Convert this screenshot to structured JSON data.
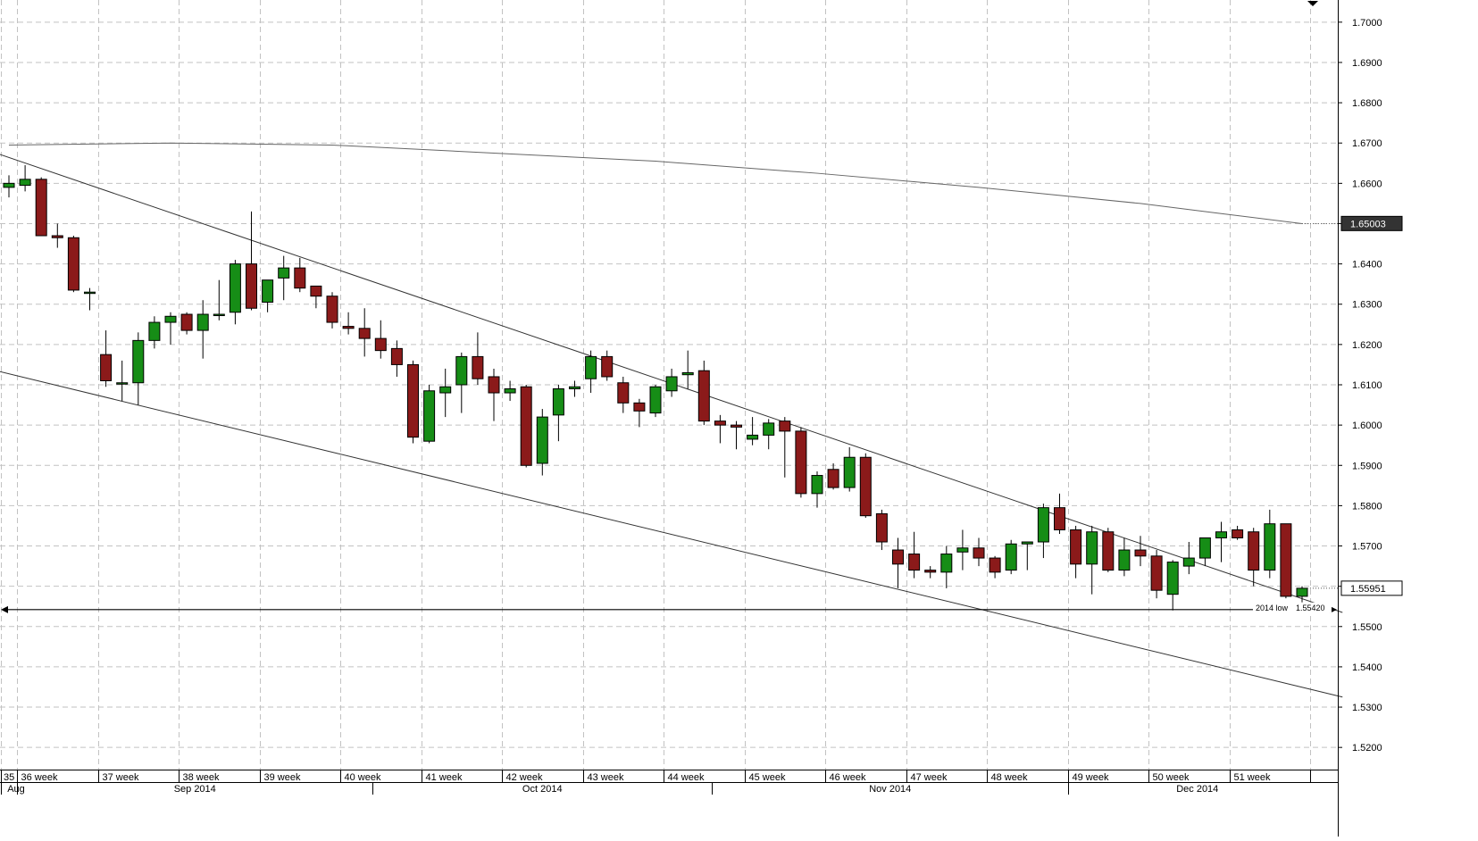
{
  "chart_data": {
    "type": "candlestick",
    "period": "daily",
    "y_axis": {
      "range": [
        1.5145,
        1.7055
      ],
      "ticks": [
        "1.5200",
        "1.5300",
        "1.5400",
        "1.5500",
        "1.5600",
        "1.5700",
        "1.5800",
        "1.5900",
        "1.6000",
        "1.6100",
        "1.6200",
        "1.6300",
        "1.6400",
        "1.6500",
        "1.6600",
        "1.6700",
        "1.6800",
        "1.6900",
        "1.7000"
      ],
      "grid": true
    },
    "x_axis": {
      "week_labels": [
        "35",
        "36 week",
        "37 week",
        "38 week",
        "39 week",
        "40 week",
        "41 week",
        "42 week",
        "43 week",
        "44 week",
        "45 week",
        "46 week",
        "47 week",
        "48 week",
        "49 week",
        "50 week",
        "51 week"
      ],
      "month_labels": [
        "Aug",
        "Sep 2014",
        "Oct 2014",
        "Nov 2014",
        "Dec 2014"
      ]
    },
    "candles": [
      {
        "o": 1.659,
        "h": 1.662,
        "l": 1.6565,
        "c": 1.66
      },
      {
        "o": 1.6595,
        "h": 1.6645,
        "l": 1.658,
        "c": 1.661
      },
      {
        "o": 1.661,
        "h": 1.6615,
        "l": 1.647,
        "c": 1.647
      },
      {
        "o": 1.647,
        "h": 1.65,
        "l": 1.644,
        "c": 1.6465
      },
      {
        "o": 1.6465,
        "h": 1.647,
        "l": 1.633,
        "c": 1.6335
      },
      {
        "o": 1.633,
        "h": 1.634,
        "l": 1.6285,
        "c": 1.633
      },
      {
        "o": 1.6175,
        "h": 1.6235,
        "l": 1.6095,
        "c": 1.611
      },
      {
        "o": 1.6105,
        "h": 1.616,
        "l": 1.606,
        "c": 1.6105
      },
      {
        "o": 1.6105,
        "h": 1.623,
        "l": 1.605,
        "c": 1.621
      },
      {
        "o": 1.621,
        "h": 1.627,
        "l": 1.619,
        "c": 1.6255
      },
      {
        "o": 1.6255,
        "h": 1.628,
        "l": 1.62,
        "c": 1.627
      },
      {
        "o": 1.6275,
        "h": 1.628,
        "l": 1.6225,
        "c": 1.6235
      },
      {
        "o": 1.6235,
        "h": 1.631,
        "l": 1.6165,
        "c": 1.6275
      },
      {
        "o": 1.6275,
        "h": 1.636,
        "l": 1.626,
        "c": 1.6275
      },
      {
        "o": 1.628,
        "h": 1.641,
        "l": 1.625,
        "c": 1.64
      },
      {
        "o": 1.64,
        "h": 1.653,
        "l": 1.6285,
        "c": 1.629
      },
      {
        "o": 1.6305,
        "h": 1.636,
        "l": 1.628,
        "c": 1.636
      },
      {
        "o": 1.6365,
        "h": 1.642,
        "l": 1.631,
        "c": 1.639
      },
      {
        "o": 1.639,
        "h": 1.6415,
        "l": 1.633,
        "c": 1.634
      },
      {
        "o": 1.6345,
        "h": 1.6345,
        "l": 1.629,
        "c": 1.632
      },
      {
        "o": 1.632,
        "h": 1.633,
        "l": 1.624,
        "c": 1.6255
      },
      {
        "o": 1.6245,
        "h": 1.628,
        "l": 1.6225,
        "c": 1.624
      },
      {
        "o": 1.624,
        "h": 1.629,
        "l": 1.617,
        "c": 1.6215
      },
      {
        "o": 1.6215,
        "h": 1.626,
        "l": 1.6165,
        "c": 1.6185
      },
      {
        "o": 1.619,
        "h": 1.621,
        "l": 1.612,
        "c": 1.615
      },
      {
        "o": 1.615,
        "h": 1.616,
        "l": 1.5955,
        "c": 1.597
      },
      {
        "o": 1.596,
        "h": 1.61,
        "l": 1.5955,
        "c": 1.6085
      },
      {
        "o": 1.608,
        "h": 1.614,
        "l": 1.602,
        "c": 1.6095
      },
      {
        "o": 1.61,
        "h": 1.618,
        "l": 1.603,
        "c": 1.617
      },
      {
        "o": 1.617,
        "h": 1.623,
        "l": 1.61,
        "c": 1.6115
      },
      {
        "o": 1.612,
        "h": 1.614,
        "l": 1.601,
        "c": 1.608
      },
      {
        "o": 1.608,
        "h": 1.611,
        "l": 1.606,
        "c": 1.609
      },
      {
        "o": 1.6095,
        "h": 1.61,
        "l": 1.5895,
        "c": 1.59
      },
      {
        "o": 1.5905,
        "h": 1.604,
        "l": 1.5875,
        "c": 1.602
      },
      {
        "o": 1.6025,
        "h": 1.61,
        "l": 1.596,
        "c": 1.609
      },
      {
        "o": 1.609,
        "h": 1.611,
        "l": 1.607,
        "c": 1.6095
      },
      {
        "o": 1.6115,
        "h": 1.6185,
        "l": 1.608,
        "c": 1.617
      },
      {
        "o": 1.617,
        "h": 1.6185,
        "l": 1.611,
        "c": 1.612
      },
      {
        "o": 1.6105,
        "h": 1.612,
        "l": 1.603,
        "c": 1.6055
      },
      {
        "o": 1.6055,
        "h": 1.6065,
        "l": 1.5995,
        "c": 1.6035
      },
      {
        "o": 1.603,
        "h": 1.61,
        "l": 1.602,
        "c": 1.6095
      },
      {
        "o": 1.6085,
        "h": 1.614,
        "l": 1.607,
        "c": 1.612
      },
      {
        "o": 1.6125,
        "h": 1.6185,
        "l": 1.609,
        "c": 1.613
      },
      {
        "o": 1.6135,
        "h": 1.616,
        "l": 1.6,
        "c": 1.601
      },
      {
        "o": 1.601,
        "h": 1.6025,
        "l": 1.5955,
        "c": 1.6
      },
      {
        "o": 1.6,
        "h": 1.601,
        "l": 1.594,
        "c": 1.5995
      },
      {
        "o": 1.5965,
        "h": 1.602,
        "l": 1.595,
        "c": 1.5975
      },
      {
        "o": 1.5975,
        "h": 1.6015,
        "l": 1.594,
        "c": 1.6005
      },
      {
        "o": 1.601,
        "h": 1.602,
        "l": 1.587,
        "c": 1.5985
      },
      {
        "o": 1.5985,
        "h": 1.5995,
        "l": 1.582,
        "c": 1.583
      },
      {
        "o": 1.583,
        "h": 1.5885,
        "l": 1.5795,
        "c": 1.5875
      },
      {
        "o": 1.589,
        "h": 1.5905,
        "l": 1.584,
        "c": 1.5845
      },
      {
        "o": 1.5845,
        "h": 1.5945,
        "l": 1.5835,
        "c": 1.592
      },
      {
        "o": 1.592,
        "h": 1.593,
        "l": 1.577,
        "c": 1.5775
      },
      {
        "o": 1.578,
        "h": 1.579,
        "l": 1.569,
        "c": 1.571
      },
      {
        "o": 1.569,
        "h": 1.572,
        "l": 1.5595,
        "c": 1.5655
      },
      {
        "o": 1.568,
        "h": 1.5735,
        "l": 1.562,
        "c": 1.564
      },
      {
        "o": 1.564,
        "h": 1.565,
        "l": 1.562,
        "c": 1.5635
      },
      {
        "o": 1.5635,
        "h": 1.57,
        "l": 1.5595,
        "c": 1.568
      },
      {
        "o": 1.5685,
        "h": 1.574,
        "l": 1.564,
        "c": 1.5695
      },
      {
        "o": 1.5695,
        "h": 1.572,
        "l": 1.565,
        "c": 1.567
      },
      {
        "o": 1.567,
        "h": 1.5675,
        "l": 1.562,
        "c": 1.5635
      },
      {
        "o": 1.564,
        "h": 1.5715,
        "l": 1.563,
        "c": 1.5705
      },
      {
        "o": 1.5705,
        "h": 1.571,
        "l": 1.564,
        "c": 1.571
      },
      {
        "o": 1.571,
        "h": 1.5805,
        "l": 1.567,
        "c": 1.5795
      },
      {
        "o": 1.5795,
        "h": 1.583,
        "l": 1.573,
        "c": 1.574
      },
      {
        "o": 1.574,
        "h": 1.575,
        "l": 1.562,
        "c": 1.5655
      },
      {
        "o": 1.5655,
        "h": 1.575,
        "l": 1.558,
        "c": 1.5735
      },
      {
        "o": 1.5735,
        "h": 1.5745,
        "l": 1.5635,
        "c": 1.564
      },
      {
        "o": 1.564,
        "h": 1.572,
        "l": 1.5625,
        "c": 1.569
      },
      {
        "o": 1.569,
        "h": 1.5725,
        "l": 1.565,
        "c": 1.5675
      },
      {
        "o": 1.5675,
        "h": 1.569,
        "l": 1.557,
        "c": 1.559
      },
      {
        "o": 1.558,
        "h": 1.5665,
        "l": 1.554,
        "c": 1.566
      },
      {
        "o": 1.565,
        "h": 1.571,
        "l": 1.563,
        "c": 1.567
      },
      {
        "o": 1.567,
        "h": 1.572,
        "l": 1.565,
        "c": 1.572
      },
      {
        "o": 1.572,
        "h": 1.576,
        "l": 1.566,
        "c": 1.5735
      },
      {
        "o": 1.574,
        "h": 1.575,
        "l": 1.5715,
        "c": 1.572
      },
      {
        "o": 1.5735,
        "h": 1.5745,
        "l": 1.56,
        "c": 1.564
      },
      {
        "o": 1.564,
        "h": 1.579,
        "l": 1.562,
        "c": 1.5755
      },
      {
        "o": 1.5755,
        "h": 1.5755,
        "l": 1.557,
        "c": 1.5575
      },
      {
        "o": 1.5575,
        "h": 1.56,
        "l": 1.556,
        "c": 1.5595
      }
    ],
    "moving_average": [
      {
        "i": 0,
        "v": 1.6695
      },
      {
        "i": 10,
        "v": 1.67
      },
      {
        "i": 20,
        "v": 1.6695
      },
      {
        "i": 30,
        "v": 1.6675
      },
      {
        "i": 40,
        "v": 1.6655
      },
      {
        "i": 50,
        "v": 1.6625
      },
      {
        "i": 60,
        "v": 1.659
      },
      {
        "i": 70,
        "v": 1.655
      },
      {
        "i": 75,
        "v": 1.6525
      },
      {
        "i": 80,
        "v": 1.65
      }
    ],
    "trendlines": [
      {
        "x0": -0.8,
        "y0": 1.6675,
        "x1": 82.5,
        "y1": 1.5535
      },
      {
        "x0": -0.8,
        "y0": 1.6135,
        "x1": 82.5,
        "y1": 1.5325
      }
    ],
    "horizontal_lines": [
      {
        "name": "2014-low",
        "value": 1.5542,
        "label": "2014 low",
        "value_label": "1.55420"
      }
    ],
    "price_labels": [
      {
        "name": "moving-average-value",
        "value": 1.65003,
        "text": "1.65003",
        "style": "dark"
      },
      {
        "name": "last-price",
        "value": 1.55951,
        "text": "1.55951",
        "style": "light"
      }
    ],
    "week_starts": [
      0,
      1,
      6,
      11,
      16,
      21,
      26,
      31,
      36,
      41,
      46,
      51,
      56,
      61,
      66,
      71,
      76,
      81
    ],
    "month_starts": [
      0,
      1,
      23,
      44,
      66,
      82
    ],
    "colors": {
      "up": "#168d16",
      "down": "#8b1a1a",
      "ma": "#666666",
      "trendline": "#333333",
      "grid": "#c2c2c2",
      "dark_label_bg": "#333333"
    }
  }
}
